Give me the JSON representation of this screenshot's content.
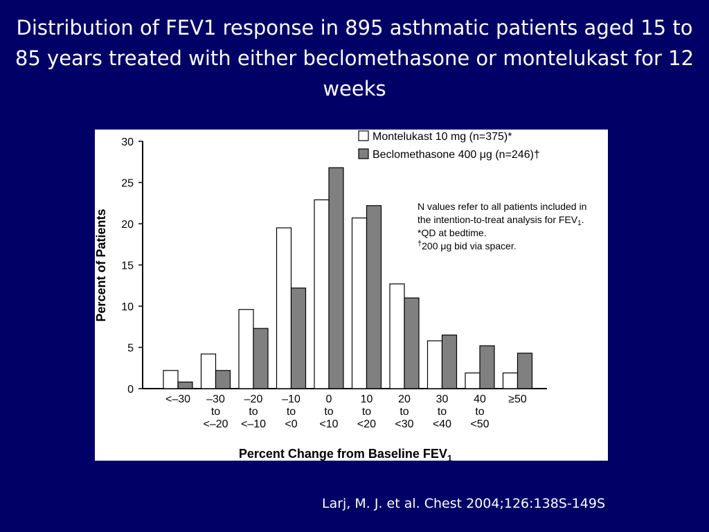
{
  "slide": {
    "title": "Distribution of FEV1 response in 895 asthmatic patients aged 15 to 85 years treated with either beclomethasone or montelukast for 12 weeks",
    "citation": "Larj, M. J. et al. Chest 2004;126:138S-149S"
  },
  "chart_data": {
    "type": "bar",
    "title": "",
    "xlabel": "Percent Change from Baseline FEV",
    "xlabel_subscript": "1",
    "ylabel": "Percent of Patients",
    "ylim": [
      0,
      30
    ],
    "yticks": [
      0,
      5,
      10,
      15,
      20,
      25,
      30
    ],
    "categories": [
      "<–30",
      "–30 to <–20",
      "–20 to <–10",
      "–10 to <0",
      "0 to <10",
      "10 to <20",
      "20 to <30",
      "30 to <40",
      "40 to <50",
      "≥50"
    ],
    "category_lines": [
      [
        "<–30"
      ],
      [
        "–30",
        "to",
        "<–20"
      ],
      [
        "–20",
        "to",
        "<–10"
      ],
      [
        "–10",
        "to",
        "<0"
      ],
      [
        "0",
        "to",
        "<10"
      ],
      [
        "10",
        "to",
        "<20"
      ],
      [
        "20",
        "to",
        "<30"
      ],
      [
        "30",
        "to",
        "<40"
      ],
      [
        "40",
        "to",
        "<50"
      ],
      [
        "≥50"
      ]
    ],
    "series": [
      {
        "name": "Montelukast 10 mg (n=375)*",
        "color": "#ffffff",
        "values": [
          2.2,
          4.2,
          9.6,
          19.5,
          22.9,
          20.7,
          12.7,
          5.8,
          1.9,
          1.9
        ]
      },
      {
        "name": "Beclomethasone 400 μg (n=246)†",
        "color": "#808080",
        "values": [
          0.8,
          2.2,
          7.3,
          12.2,
          26.8,
          22.2,
          11.0,
          6.5,
          5.2,
          4.3
        ]
      }
    ],
    "legend_position": "top-right",
    "grid": false,
    "notes": [
      {
        "text": "N values refer to all patients included in"
      },
      {
        "text": "the intention-to-treat analysis for FEV",
        "sub": "1",
        "tail": "."
      },
      {
        "text": "*QD at bedtime."
      },
      {
        "text": "200 μg bid via spacer.",
        "sup": "†",
        "sup_first": true
      }
    ]
  }
}
